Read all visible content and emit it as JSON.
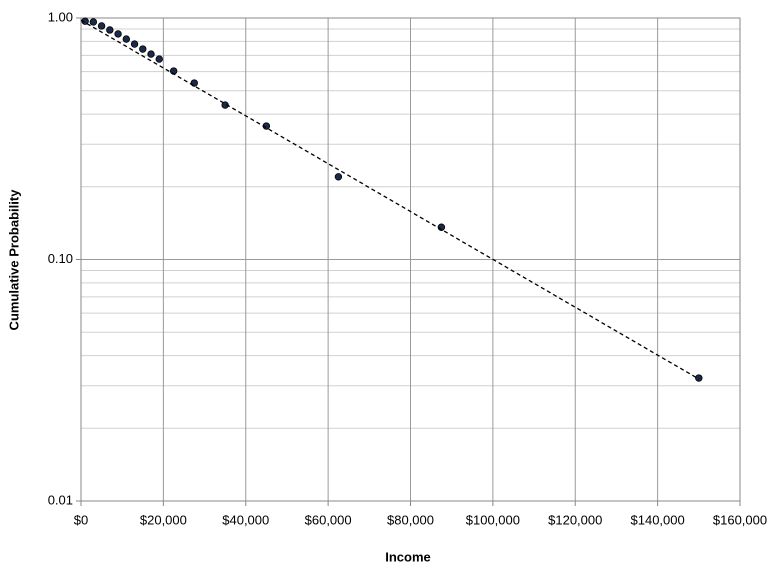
{
  "chart_data": {
    "type": "scatter",
    "x_label": "Income",
    "y_label": "Cumulative Probability",
    "log_y": true,
    "grid": true,
    "xlim": [
      0,
      160000
    ],
    "xticks": [
      {
        "value": 0,
        "label": "$0"
      },
      {
        "value": 20000,
        "label": "$20,000"
      },
      {
        "value": 40000,
        "label": "$40,000"
      },
      {
        "value": 60000,
        "label": "$60,000"
      },
      {
        "value": 80000,
        "label": "$80,000"
      },
      {
        "value": 100000,
        "label": "$100,000"
      },
      {
        "value": 120000,
        "label": "$120,000"
      },
      {
        "value": 140000,
        "label": "$140,000"
      },
      {
        "value": 160000,
        "label": "$160,000"
      }
    ],
    "ylim": [
      0.01,
      1
    ],
    "yticks": [
      {
        "value": 0.01,
        "label": "0.01"
      },
      {
        "value": 0.1,
        "label": "0.10"
      },
      {
        "value": 1,
        "label": "1.00"
      }
    ],
    "y_minor_ticks": [
      0.02,
      0.03,
      0.04,
      0.05,
      0.06,
      0.07,
      0.08,
      0.09,
      0.2,
      0.3,
      0.4,
      0.5,
      0.6,
      0.7,
      0.8,
      0.9
    ],
    "series": [
      {
        "mode": "markers",
        "color": "#1b2a48",
        "x": [
          1000,
          3000,
          5000,
          7000,
          9000,
          11000,
          13000,
          15000,
          17000,
          19000,
          22500,
          27500,
          35000,
          45000,
          62500,
          87500,
          150000
        ],
        "values": [
          0.97,
          0.963,
          0.927,
          0.892,
          0.859,
          0.818,
          0.78,
          0.744,
          0.709,
          0.676,
          0.603,
          0.538,
          0.436,
          0.357,
          0.22,
          0.136,
          0.0323
        ]
      },
      {
        "mode": "dashed-line",
        "color": "#000000",
        "x": [
          0,
          150000
        ],
        "values": [
          0.98,
          0.032
        ]
      }
    ]
  }
}
